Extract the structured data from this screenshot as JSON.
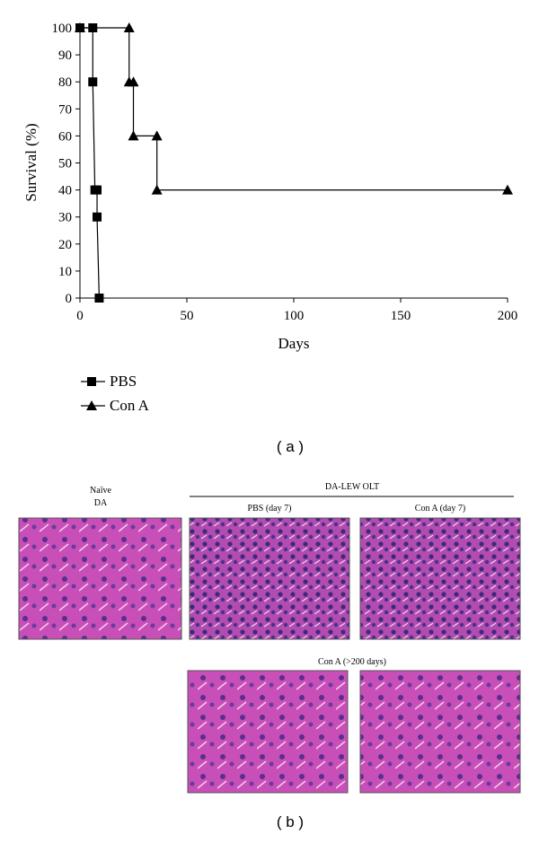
{
  "chart_data": {
    "type": "line",
    "x_label": "Days",
    "y_label": "Survival (%)",
    "series": [
      {
        "name": "PBS",
        "color": "#000000",
        "marker": "square",
        "x": [
          0,
          6,
          6,
          7,
          8,
          8,
          9
        ],
        "values": [
          100,
          100,
          80,
          40,
          40,
          30,
          0
        ]
      },
      {
        "name": "Con A",
        "color": "#000000",
        "marker": "triangle",
        "x": [
          0,
          23,
          23,
          25,
          25,
          36,
          36,
          200
        ],
        "values": [
          100,
          100,
          80,
          80,
          60,
          60,
          40,
          40
        ]
      }
    ],
    "xlim": [
      0,
      200
    ],
    "xticks": [
      0,
      50,
      100,
      150,
      200
    ],
    "ylim": [
      0,
      100
    ],
    "yticks": [
      0,
      10,
      20,
      30,
      40,
      50,
      60,
      70,
      80,
      90,
      100
    ],
    "legend": "bottom-left"
  },
  "panel_a_label": "( a )",
  "panel_b": {
    "label": "( b )",
    "naive_title": [
      "Naïve",
      "DA"
    ],
    "group_title": "DA-LEW OLT",
    "captions": [
      "PBS (day 7)",
      "Con A (day 7)",
      "Con A (>200 days)"
    ]
  }
}
